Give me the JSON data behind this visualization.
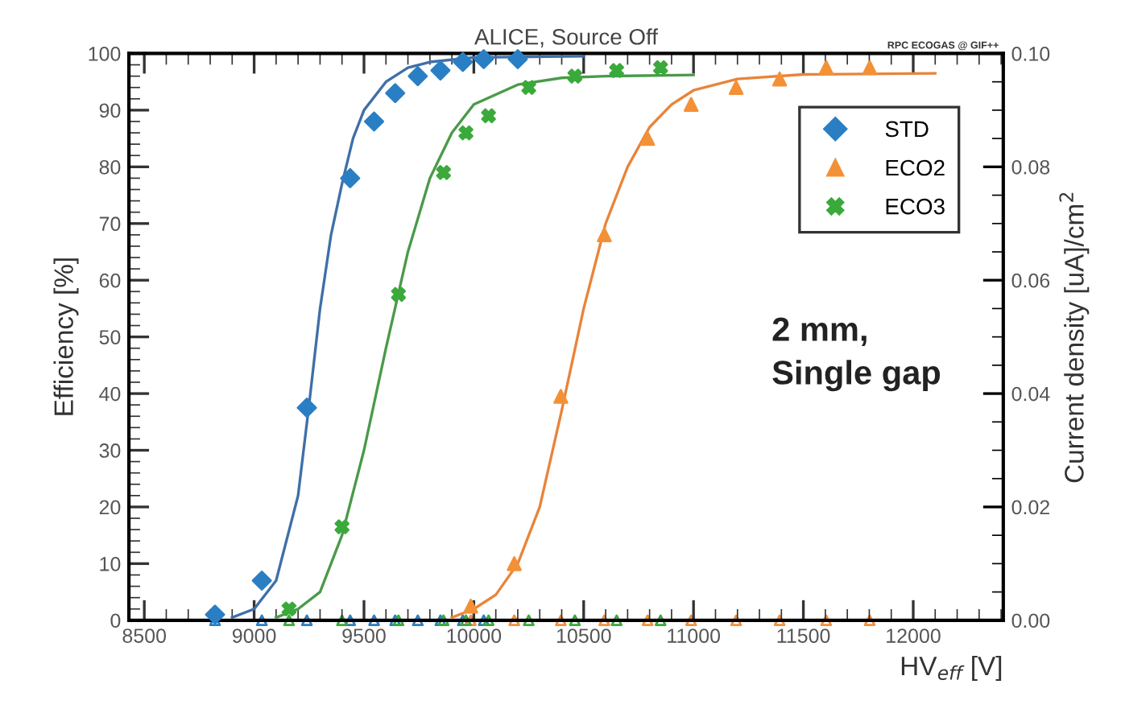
{
  "chart_data": {
    "type": "scatter",
    "title": "ALICE, Source Off",
    "xlabel": "HV$_{eff}$ [V]",
    "ylabel": "Efficiency [%]",
    "y2label": "Current density [uA]/cm$^{2}$",
    "annotations": [
      "2 mm,\nSingle gap",
      "RPC ECOGAS @ GIF++"
    ],
    "xlim": [
      8430,
      12410
    ],
    "xticks": [
      8500,
      9000,
      9500,
      10000,
      10500,
      11000,
      11500,
      12000
    ],
    "ylim": [
      0,
      100
    ],
    "yticks": [
      0,
      10,
      20,
      30,
      40,
      50,
      60,
      70,
      80,
      90,
      100
    ],
    "y2lim": [
      0,
      0.1
    ],
    "y2ticks": [
      {
        "value": 0,
        "label": "0.00"
      },
      {
        "value": 0.02,
        "label": "0.02"
      },
      {
        "value": 0.04,
        "label": "0.04"
      },
      {
        "value": 0.06,
        "label": "0.06"
      },
      {
        "value": 0.08,
        "label": "0.08"
      },
      {
        "value": 0.1,
        "label": "0.10"
      }
    ],
    "legend": "top right",
    "grid": false,
    "series": [
      {
        "name": "STD",
        "marker": "diamond",
        "color": "#2a7fc4",
        "x": [
          8822,
          9035,
          9240,
          9437,
          9546,
          9642,
          9745,
          9848,
          9950,
          10045,
          10200
        ],
        "values": [
          1,
          7,
          37.5,
          78,
          88,
          93,
          96,
          97,
          98.5,
          99,
          99
        ]
      },
      {
        "name": "ECO2",
        "marker": "triangle",
        "color": "#f39137",
        "x": [
          9986,
          10184,
          10396,
          10594,
          10791,
          10989,
          11194,
          11392,
          11604,
          11802
        ],
        "values": [
          2.5,
          10,
          39.5,
          68,
          85,
          91,
          94,
          95.5,
          97.5,
          97.5
        ]
      },
      {
        "name": "ECO3",
        "marker": "cross",
        "color": "#3aaa3a",
        "x": [
          9159,
          9400,
          9657,
          9862,
          9964,
          10067,
          10250,
          10460,
          10650,
          10850
        ],
        "values": [
          2,
          16.5,
          57.5,
          79,
          86,
          89,
          94,
          96,
          97,
          97.5
        ]
      },
      {
        "type": "line",
        "color": "#3f6fa8",
        "x": [
          8900,
          9000,
          9100,
          9200,
          9250,
          9300,
          9350,
          9400,
          9450,
          9500,
          9600,
          9700,
          9800,
          10000,
          10500
        ],
        "values": [
          0.5,
          2,
          7,
          22,
          38,
          55,
          68,
          77,
          85,
          90,
          95,
          97.5,
          98.5,
          99.3,
          99.5
        ]
      },
      {
        "type": "line",
        "color": "#e8843a",
        "x": [
          9900,
          10000,
          10100,
          10200,
          10300,
          10400,
          10500,
          10600,
          10700,
          10800,
          10900,
          11000,
          11200,
          11500,
          12100
        ],
        "values": [
          0.5,
          2,
          4.5,
          10,
          20,
          37,
          55,
          70,
          80,
          87,
          91,
          93.5,
          95.5,
          96.3,
          96.5
        ]
      },
      {
        "type": "line",
        "color": "#4a9a4a",
        "x": [
          9100,
          9200,
          9300,
          9400,
          9500,
          9600,
          9700,
          9800,
          9900,
          10000,
          10200,
          10400,
          10600,
          11000
        ],
        "values": [
          0.5,
          2,
          5,
          15,
          30,
          48,
          65,
          78,
          86,
          91,
          94.5,
          95.7,
          96,
          96.2
        ]
      },
      {
        "type": "scatter",
        "axis": "y2",
        "marker": "triangle",
        "color": "#2a7fc4",
        "x": [
          8822,
          9035,
          9240,
          9437,
          9546,
          9642,
          9745,
          9848,
          9950,
          10045
        ],
        "values": [
          0,
          0,
          0,
          0,
          0,
          0,
          0,
          0,
          0,
          0
        ]
      },
      {
        "type": "scatter",
        "axis": "y2",
        "marker": "triangle",
        "color": "#f39137",
        "x": [
          9986,
          10184,
          10396,
          10594,
          10791,
          10989,
          11194,
          11392,
          11604,
          11802
        ],
        "values": [
          0,
          0,
          0,
          0,
          0,
          0,
          0,
          0,
          0,
          0
        ]
      },
      {
        "type": "scatter",
        "axis": "y2",
        "marker": "triangle",
        "color": "#3aaa3a",
        "x": [
          9159,
          9400,
          9657,
          9862,
          9964,
          10067,
          10250,
          10460,
          10650,
          10850
        ],
        "values": [
          0,
          0,
          0,
          0,
          0,
          0,
          0,
          0,
          0,
          0
        ]
      }
    ]
  }
}
